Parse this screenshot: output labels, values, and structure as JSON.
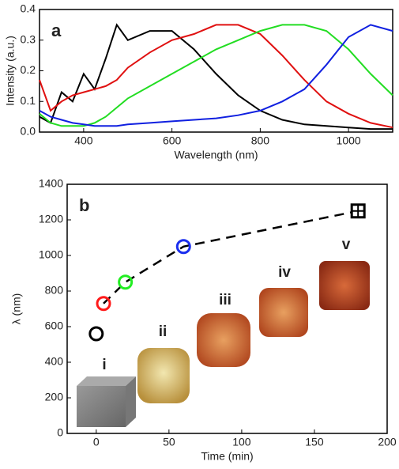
{
  "chart_data": [
    {
      "type": "line",
      "label": "a",
      "x_label": "Wavelength (nm)",
      "y_label": "Intensity (a.u.)",
      "x": [
        300,
        325,
        350,
        375,
        400,
        425,
        450,
        475,
        500,
        550,
        600,
        650,
        700,
        750,
        800,
        850,
        900,
        950,
        1000,
        1050,
        1100
      ],
      "series": [
        {
          "color": "#000000",
          "values": [
            0.05,
            0.03,
            0.13,
            0.1,
            0.19,
            0.14,
            0.24,
            0.35,
            0.3,
            0.33,
            0.33,
            0.27,
            0.19,
            0.12,
            0.07,
            0.04,
            0.025,
            0.02,
            0.015,
            0.01,
            0.01
          ]
        },
        {
          "color": "#e01010",
          "values": [
            0.17,
            0.07,
            0.1,
            0.12,
            0.13,
            0.14,
            0.15,
            0.17,
            0.21,
            0.26,
            0.3,
            0.32,
            0.35,
            0.35,
            0.32,
            0.25,
            0.17,
            0.1,
            0.06,
            0.03,
            0.015
          ]
        },
        {
          "color": "#22dd22",
          "values": [
            0.06,
            0.03,
            0.02,
            0.02,
            0.02,
            0.03,
            0.05,
            0.08,
            0.11,
            0.15,
            0.19,
            0.23,
            0.27,
            0.3,
            0.33,
            0.35,
            0.35,
            0.33,
            0.27,
            0.19,
            0.12
          ]
        },
        {
          "color": "#1020e0",
          "values": [
            0.07,
            0.05,
            0.04,
            0.03,
            0.025,
            0.02,
            0.02,
            0.02,
            0.025,
            0.03,
            0.035,
            0.04,
            0.045,
            0.055,
            0.07,
            0.1,
            0.14,
            0.22,
            0.31,
            0.35,
            0.33
          ]
        }
      ],
      "xlim": [
        300,
        1100
      ],
      "xticks": [
        400,
        600,
        800,
        1000
      ],
      "ylim": [
        0,
        0.4
      ],
      "yticks": [
        {
          "value": 0,
          "label": "0.0"
        },
        0.1,
        0.2,
        0.3,
        0.4
      ]
    },
    {
      "type": "scatter",
      "label": "b",
      "x_label": "Time (min)",
      "y_label": "λ (nm)",
      "x": [
        0,
        5,
        20,
        60,
        180
      ],
      "values": [
        560,
        730,
        850,
        1050,
        1250
      ],
      "colors": [
        "#000000",
        "#ff1a1a",
        "#22ee22",
        "#1a2eee",
        "#000000"
      ],
      "annotations": [
        {
          "text": "i",
          "color": "#000000"
        },
        {
          "text": "ii",
          "color": "#ee1a1a"
        },
        {
          "text": "iii",
          "color": "#44dd22"
        },
        {
          "text": "iv",
          "color": "#5544ee"
        },
        {
          "text": "v",
          "color": "#000000"
        }
      ],
      "xlim": [
        -20,
        200
      ],
      "xticks": [
        0,
        50,
        100,
        150,
        200
      ],
      "ylim": [
        0,
        1400
      ],
      "yticks": [
        0,
        200,
        400,
        600,
        800,
        1000,
        1200,
        1400
      ]
    }
  ]
}
